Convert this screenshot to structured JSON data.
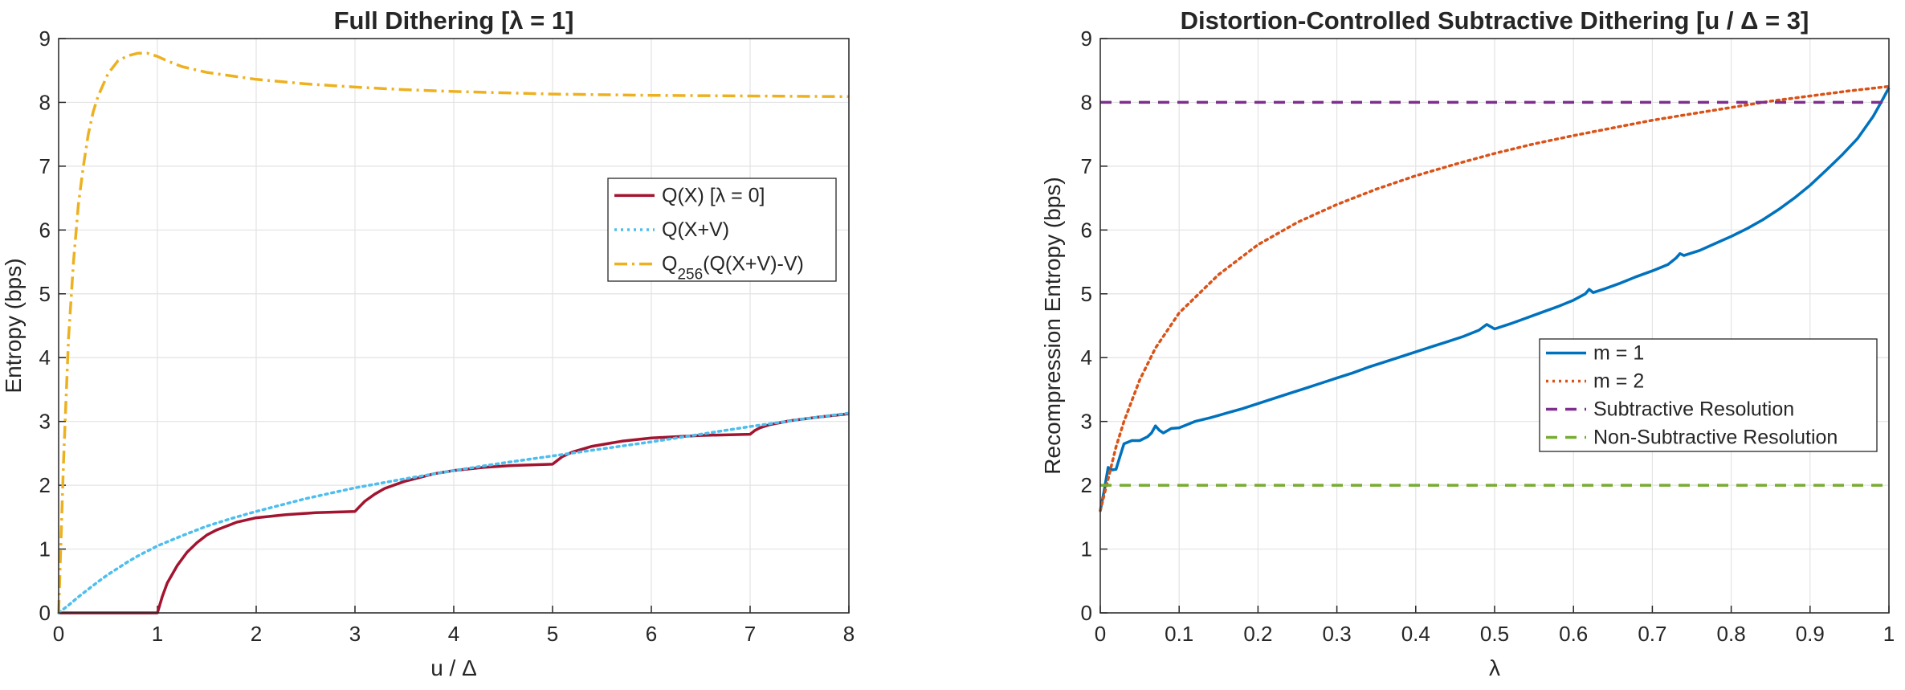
{
  "chart_data": [
    {
      "type": "line",
      "title": "Full Dithering [λ = 1]",
      "xlabel": "u / Δ",
      "ylabel": "Entropy (bps)",
      "xlim": [
        0,
        8
      ],
      "ylim": [
        0,
        9
      ],
      "xticks": [
        "0",
        "1",
        "2",
        "3",
        "4",
        "5",
        "6",
        "7",
        "8"
      ],
      "yticks": [
        "0",
        "1",
        "2",
        "3",
        "4",
        "5",
        "6",
        "7",
        "8",
        "9"
      ],
      "grid": true,
      "legend_position": "right",
      "series": [
        {
          "name": "Q(X) [λ = 0]",
          "color": "#A2142F",
          "style": "solid",
          "x": [
            0,
            0.99,
            1.0,
            1.05,
            1.1,
            1.2,
            1.3,
            1.4,
            1.5,
            1.6,
            1.8,
            2.0,
            2.3,
            2.6,
            3.0,
            3.05,
            3.1,
            3.2,
            3.3,
            3.5,
            3.8,
            4.0,
            4.3,
            4.6,
            5.0,
            5.05,
            5.1,
            5.2,
            5.4,
            5.7,
            6.0,
            6.5,
            7.0,
            7.05,
            7.1,
            7.2,
            7.4,
            7.7,
            8.0
          ],
          "y": [
            0,
            0,
            0,
            0.26,
            0.47,
            0.74,
            0.95,
            1.1,
            1.22,
            1.3,
            1.42,
            1.49,
            1.54,
            1.57,
            1.59,
            1.67,
            1.75,
            1.86,
            1.95,
            2.06,
            2.18,
            2.23,
            2.28,
            2.31,
            2.33,
            2.39,
            2.45,
            2.52,
            2.61,
            2.69,
            2.74,
            2.78,
            2.8,
            2.86,
            2.9,
            2.95,
            3.01,
            3.07,
            3.12
          ]
        },
        {
          "name": "Q(X+V)",
          "color": "#4DBEEE",
          "style": "dotted",
          "x": [
            0,
            0.1,
            0.2,
            0.3,
            0.4,
            0.5,
            0.6,
            0.7,
            0.8,
            0.9,
            1.0,
            1.25,
            1.5,
            1.75,
            2.0,
            2.5,
            3.0,
            3.5,
            4.0,
            4.5,
            5.0,
            5.5,
            6.0,
            6.5,
            7.0,
            7.5,
            8.0
          ],
          "y": [
            0,
            0.12,
            0.25,
            0.37,
            0.49,
            0.6,
            0.7,
            0.8,
            0.89,
            0.97,
            1.05,
            1.21,
            1.36,
            1.48,
            1.59,
            1.79,
            1.96,
            2.1,
            2.23,
            2.35,
            2.46,
            2.57,
            2.68,
            2.8,
            2.92,
            3.03,
            3.13
          ]
        },
        {
          "name": "Q<sub>256</sub>(Q(X+V)-V)",
          "color": "#EDB120",
          "style": "dashdot",
          "x": [
            0,
            0.05,
            0.1,
            0.15,
            0.2,
            0.25,
            0.3,
            0.35,
            0.4,
            0.5,
            0.6,
            0.7,
            0.8,
            0.9,
            1.0,
            1.1,
            1.25,
            1.5,
            2.0,
            2.5,
            3.0,
            3.5,
            4.0,
            5.0,
            6.0,
            7.0,
            8.0
          ],
          "y": [
            0,
            2.4,
            4.3,
            5.5,
            6.4,
            7.0,
            7.5,
            7.85,
            8.1,
            8.45,
            8.65,
            8.73,
            8.77,
            8.77,
            8.72,
            8.65,
            8.56,
            8.47,
            8.36,
            8.29,
            8.24,
            8.2,
            8.17,
            8.13,
            8.11,
            8.1,
            8.09
          ]
        }
      ]
    },
    {
      "type": "line",
      "title": "Distortion-Controlled Subtractive Dithering [u / Δ = 3]",
      "xlabel": "λ",
      "ylabel": "Recompression Entropy (bps)",
      "xlim": [
        0,
        1
      ],
      "ylim": [
        0,
        9
      ],
      "xticks": [
        "0",
        "0.1",
        "0.2",
        "0.3",
        "0.4",
        "0.5",
        "0.6",
        "0.7",
        "0.8",
        "0.9",
        "1"
      ],
      "yticks": [
        "0",
        "1",
        "2",
        "3",
        "4",
        "5",
        "6",
        "7",
        "8",
        "9"
      ],
      "grid": true,
      "legend_position": "center-right",
      "series": [
        {
          "name": "m = 1",
          "color": "#0072BD",
          "style": "solid",
          "x": [
            0,
            0.005,
            0.01,
            0.015,
            0.02,
            0.025,
            0.03,
            0.04,
            0.05,
            0.06,
            0.065,
            0.07,
            0.075,
            0.08,
            0.09,
            0.1,
            0.12,
            0.14,
            0.16,
            0.18,
            0.2,
            0.22,
            0.24,
            0.26,
            0.28,
            0.3,
            0.32,
            0.34,
            0.36,
            0.38,
            0.4,
            0.42,
            0.44,
            0.46,
            0.48,
            0.49,
            0.5,
            0.52,
            0.54,
            0.56,
            0.58,
            0.6,
            0.615,
            0.62,
            0.625,
            0.64,
            0.66,
            0.68,
            0.7,
            0.72,
            0.73,
            0.735,
            0.74,
            0.76,
            0.78,
            0.8,
            0.82,
            0.84,
            0.86,
            0.88,
            0.9,
            0.92,
            0.94,
            0.96,
            0.98,
            0.99,
            1.0
          ],
          "y": [
            1.6,
            1.92,
            2.28,
            2.24,
            2.25,
            2.45,
            2.65,
            2.7,
            2.7,
            2.76,
            2.82,
            2.93,
            2.86,
            2.82,
            2.89,
            2.9,
            3.0,
            3.06,
            3.13,
            3.2,
            3.28,
            3.36,
            3.44,
            3.52,
            3.6,
            3.68,
            3.76,
            3.85,
            3.93,
            4.01,
            4.09,
            4.17,
            4.25,
            4.33,
            4.43,
            4.52,
            4.45,
            4.53,
            4.62,
            4.71,
            4.8,
            4.9,
            5.0,
            5.07,
            5.02,
            5.08,
            5.17,
            5.27,
            5.36,
            5.46,
            5.56,
            5.63,
            5.6,
            5.68,
            5.79,
            5.9,
            6.02,
            6.16,
            6.32,
            6.5,
            6.7,
            6.93,
            7.17,
            7.43,
            7.78,
            8.0,
            8.23
          ]
        },
        {
          "name": "m = 2",
          "color": "#D95319",
          "style": "dotted",
          "x": [
            0,
            0.005,
            0.01,
            0.02,
            0.03,
            0.05,
            0.07,
            0.1,
            0.15,
            0.2,
            0.25,
            0.3,
            0.35,
            0.4,
            0.45,
            0.5,
            0.55,
            0.6,
            0.65,
            0.7,
            0.75,
            0.8,
            0.85,
            0.9,
            0.95,
            1.0
          ],
          "y": [
            1.6,
            1.85,
            2.1,
            2.6,
            3.0,
            3.65,
            4.15,
            4.7,
            5.3,
            5.77,
            6.12,
            6.4,
            6.64,
            6.85,
            7.03,
            7.2,
            7.35,
            7.48,
            7.6,
            7.72,
            7.82,
            7.92,
            8.02,
            8.1,
            8.18,
            8.25
          ]
        },
        {
          "name": "Subtractive Resolution",
          "color": "#7E2F8E",
          "style": "dashed",
          "x": [
            0,
            1
          ],
          "y": [
            8,
            8
          ]
        },
        {
          "name": "Non-Subtractive Resolution",
          "color": "#77AC30",
          "style": "dashed",
          "x": [
            0,
            1
          ],
          "y": [
            2,
            2
          ]
        }
      ]
    }
  ]
}
